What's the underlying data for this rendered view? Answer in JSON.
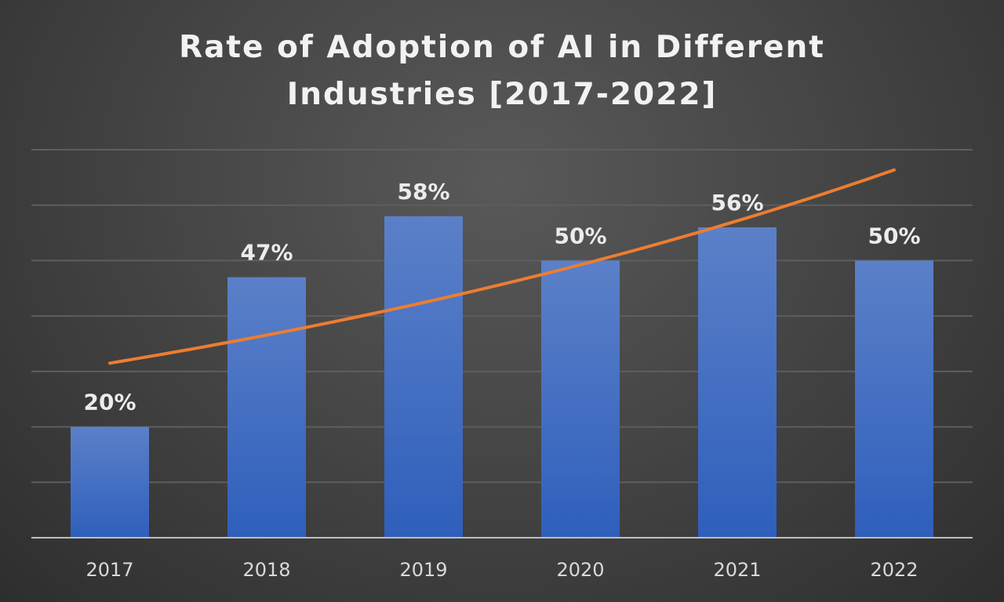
{
  "chart_data": {
    "type": "bar",
    "title_lines": [
      "Rate of Adoption of AI in Different",
      "Industries [2017-2022]"
    ],
    "categories": [
      "2017",
      "2018",
      "2019",
      "2020",
      "2021",
      "2022"
    ],
    "values": [
      20,
      47,
      58,
      50,
      56,
      50
    ],
    "data_labels": [
      "20%",
      "47%",
      "58%",
      "50%",
      "56%",
      "50%"
    ],
    "ylim": [
      0,
      70
    ],
    "ytick_step": 10,
    "grid": true,
    "xlabel": "",
    "ylabel": "",
    "trendline": {
      "type": "exponential",
      "x": [
        1,
        2,
        3,
        4,
        5,
        6
      ],
      "y": [
        31,
        36.4,
        42.8,
        50.2,
        59,
        63.8
      ]
    },
    "colors": {
      "bar_top": "#5b80c8",
      "bar_bottom": "#2f5fbc",
      "trendline": "#ed7d31"
    }
  }
}
